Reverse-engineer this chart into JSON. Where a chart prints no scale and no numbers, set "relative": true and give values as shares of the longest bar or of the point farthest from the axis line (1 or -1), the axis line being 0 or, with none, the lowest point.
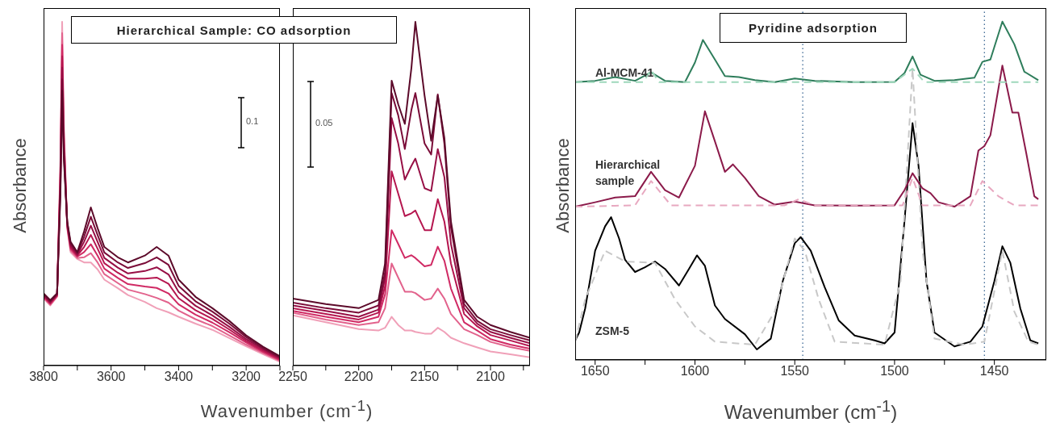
{
  "chart_data": [
    {
      "type": "line",
      "title": "Hierarchical Sample: CO adsorption",
      "xlabel": "Wavenumber (cm$^{-1}$)",
      "ylabel": "Absorbance",
      "relative": true,
      "annotations": [
        "0.1"
      ],
      "xlim": [
        3800,
        3100
      ],
      "xticks": [
        3800,
        {
          "value": 3700,
          "label": null
        },
        3600,
        {
          "value": 3500,
          "label": null
        },
        3400,
        {
          "value": 3300,
          "label": null
        },
        3200,
        {
          "value": 3100,
          "label": null
        }
      ],
      "x": [
        3800,
        3780,
        3760,
        3750,
        3745,
        3740,
        3730,
        3720,
        3700,
        3680,
        3660,
        3640,
        3620,
        3580,
        3550,
        3500,
        3465,
        3430,
        3400,
        3350,
        3300,
        3250,
        3200,
        3150,
        3100
      ],
      "series": [
        {
          "color": "#5c0a2a",
          "values": [
            0.21,
            0.19,
            0.21,
            0.5,
            0.8,
            0.6,
            0.42,
            0.36,
            0.33,
            0.39,
            0.46,
            0.4,
            0.345,
            0.315,
            0.3,
            0.32,
            0.345,
            0.32,
            0.25,
            0.2,
            0.167,
            0.13,
            0.088,
            0.055,
            0.027
          ]
        },
        {
          "color": "#7a0c38",
          "values": [
            0.207,
            0.187,
            0.208,
            0.517,
            0.833,
            0.617,
            0.417,
            0.355,
            0.327,
            0.375,
            0.433,
            0.38,
            0.329,
            0.3,
            0.284,
            0.298,
            0.315,
            0.293,
            0.232,
            0.187,
            0.157,
            0.122,
            0.083,
            0.051,
            0.024
          ]
        },
        {
          "color": "#970f45",
          "values": [
            0.205,
            0.185,
            0.207,
            0.533,
            0.867,
            0.633,
            0.413,
            0.35,
            0.323,
            0.36,
            0.407,
            0.36,
            0.313,
            0.285,
            0.268,
            0.275,
            0.286,
            0.265,
            0.214,
            0.174,
            0.146,
            0.113,
            0.077,
            0.048,
            0.022
          ]
        },
        {
          "color": "#b5164f",
          "values": [
            0.202,
            0.182,
            0.205,
            0.55,
            0.9,
            0.65,
            0.41,
            0.345,
            0.32,
            0.345,
            0.38,
            0.34,
            0.298,
            0.27,
            0.253,
            0.253,
            0.256,
            0.238,
            0.196,
            0.161,
            0.136,
            0.105,
            0.072,
            0.044,
            0.019
          ]
        },
        {
          "color": "#d02a64",
          "values": [
            0.2,
            0.18,
            0.203,
            0.567,
            0.933,
            0.667,
            0.407,
            0.34,
            0.317,
            0.33,
            0.353,
            0.32,
            0.282,
            0.255,
            0.237,
            0.23,
            0.226,
            0.21,
            0.178,
            0.148,
            0.125,
            0.097,
            0.067,
            0.04,
            0.016
          ]
        },
        {
          "color": "#e2628c",
          "values": [
            0.197,
            0.177,
            0.202,
            0.583,
            0.967,
            0.683,
            0.403,
            0.335,
            0.313,
            0.315,
            0.327,
            0.3,
            0.266,
            0.24,
            0.221,
            0.208,
            0.197,
            0.183,
            0.16,
            0.135,
            0.115,
            0.088,
            0.061,
            0.037,
            0.014
          ]
        },
        {
          "color": "#f0a0b8",
          "values": [
            0.195,
            0.175,
            0.2,
            0.6,
            1,
            0.7,
            0.4,
            0.33,
            0.31,
            0.3,
            0.3,
            0.28,
            0.25,
            0.225,
            0.205,
            0.185,
            0.167,
            0.155,
            0.142,
            0.122,
            0.104,
            0.08,
            0.056,
            0.033,
            0.011
          ]
        }
      ]
    },
    {
      "type": "line",
      "relative": true,
      "annotations": [
        "0.05"
      ],
      "xlim": [
        2250,
        2070
      ],
      "xticks": [
        2250,
        {
          "value": 2225,
          "label": null
        },
        2200,
        {
          "value": 2175,
          "label": null
        },
        2150,
        {
          "value": 2125,
          "label": null
        },
        2100,
        {
          "value": 2075,
          "label": null
        }
      ],
      "x": [
        2250,
        2225,
        2200,
        2185,
        2180,
        2175,
        2170,
        2165,
        2160,
        2157,
        2150,
        2145,
        2140,
        2135,
        2130,
        2120,
        2110,
        2100,
        2085,
        2070
      ],
      "series": [
        {
          "color": "#5c0a2a",
          "values": [
            0.195,
            0.179,
            0.167,
            0.191,
            0.297,
            0.829,
            0.76,
            0.703,
            0.866,
            1,
            0.785,
            0.654,
            0.785,
            0.663,
            0.419,
            0.191,
            0.142,
            0.118,
            0.098,
            0.081
          ]
        },
        {
          "color": "#7a0c38",
          "values": [
            0.183,
            0.167,
            0.154,
            0.175,
            0.272,
            0.793,
            0.728,
            0.63,
            0.744,
            0.793,
            0.646,
            0.614,
            0.789,
            0.646,
            0.402,
            0.179,
            0.13,
            0.106,
            0.089,
            0.073
          ]
        },
        {
          "color": "#970f45",
          "values": [
            0.175,
            0.159,
            0.142,
            0.163,
            0.256,
            0.72,
            0.646,
            0.541,
            0.581,
            0.602,
            0.516,
            0.508,
            0.63,
            0.549,
            0.354,
            0.167,
            0.122,
            0.098,
            0.081,
            0.065
          ]
        },
        {
          "color": "#b5164f",
          "values": [
            0.167,
            0.15,
            0.134,
            0.154,
            0.232,
            0.565,
            0.5,
            0.435,
            0.443,
            0.451,
            0.394,
            0.394,
            0.484,
            0.419,
            0.297,
            0.15,
            0.114,
            0.089,
            0.073,
            0.057
          ]
        },
        {
          "color": "#d02a64",
          "values": [
            0.159,
            0.142,
            0.126,
            0.142,
            0.207,
            0.394,
            0.354,
            0.313,
            0.321,
            0.313,
            0.289,
            0.293,
            0.346,
            0.305,
            0.224,
            0.126,
            0.102,
            0.077,
            0.061,
            0.049
          ]
        },
        {
          "color": "#e2628c",
          "values": [
            0.154,
            0.134,
            0.118,
            0.126,
            0.167,
            0.297,
            0.256,
            0.215,
            0.215,
            0.211,
            0.191,
            0.195,
            0.224,
            0.195,
            0.15,
            0.106,
            0.089,
            0.069,
            0.054,
            0.043
          ]
        },
        {
          "color": "#f0a0b8",
          "values": [
            0.146,
            0.126,
            0.106,
            0.102,
            0.11,
            0.142,
            0.118,
            0.102,
            0.102,
            0.098,
            0.093,
            0.093,
            0.11,
            0.098,
            0.081,
            0.065,
            0.053,
            0.041,
            0.033,
            0.024
          ]
        }
      ]
    },
    {
      "type": "line",
      "title": "Pyridine adsorption",
      "xlabel": "Wavenumber (cm$^{-1}$)",
      "ylabel": "Absorbance",
      "relative": true,
      "xlim": [
        1660,
        1424
      ],
      "xticks": [
        1650,
        {
          "value": 1625,
          "label": null
        },
        1600,
        {
          "value": 1575,
          "label": null
        },
        1550,
        {
          "value": 1525,
          "label": null
        },
        1500,
        {
          "value": 1475,
          "label": null
        },
        1450
      ],
      "ref_lines": [
        {
          "axis": "x",
          "value": 1546,
          "color": "#2a5a8a",
          "line_style": "dotted"
        },
        {
          "axis": "x",
          "value": 1455,
          "color": "#2a5a8a",
          "line_style": "dotted"
        }
      ],
      "series": [
        {
          "color": "#9fd8bc",
          "line_style": "dashed",
          "x": [
            1660,
            1626,
            1622,
            1618,
            1500,
            1491,
            1485,
            1428
          ],
          "values": [
            0.821,
            0.821,
            0.857,
            0.821,
            0.821,
            0.861,
            0.821,
            0.821
          ]
        },
        {
          "name": "Al-MCM-41",
          "color": "#2e7d5b",
          "x": [
            1660,
            1650,
            1640,
            1630,
            1622,
            1615,
            1605,
            1600,
            1596,
            1590,
            1585,
            1578,
            1570,
            1560,
            1550,
            1540,
            1520,
            1500,
            1495,
            1491,
            1487,
            1480,
            1470,
            1460,
            1456,
            1452,
            1446,
            1440,
            1435,
            1428
          ],
          "values": [
            0.821,
            0.825,
            0.836,
            0.825,
            0.85,
            0.825,
            0.821,
            0.879,
            0.946,
            0.888,
            0.839,
            0.836,
            0.827,
            0.821,
            0.832,
            0.825,
            0.821,
            0.822,
            0.848,
            0.897,
            0.843,
            0.825,
            0.827,
            0.834,
            0.881,
            0.888,
            1,
            0.933,
            0.852,
            0.827
          ]
        },
        {
          "color": "#e8a8c0",
          "line_style": "dashed",
          "x": [
            1660,
            1630,
            1622,
            1612,
            1555,
            1548,
            1540,
            1496,
            1491,
            1486,
            1462,
            1456,
            1448,
            1440,
            1428
          ],
          "values": [
            0.453,
            0.457,
            0.529,
            0.457,
            0.457,
            0.475,
            0.457,
            0.457,
            0.538,
            0.457,
            0.457,
            0.529,
            0.484,
            0.457,
            0.457
          ]
        },
        {
          "name": "Hierarchical sample",
          "color": "#8b1a4a",
          "x": [
            1660,
            1650,
            1640,
            1630,
            1622,
            1615,
            1608,
            1600,
            1595,
            1590,
            1585,
            1581,
            1575,
            1568,
            1560,
            1550,
            1540,
            1520,
            1500,
            1495,
            1491,
            1486,
            1482,
            1478,
            1470,
            1462,
            1458,
            1455,
            1452,
            1446,
            1441,
            1438,
            1434,
            1430,
            1428
          ],
          "values": [
            0.453,
            0.466,
            0.48,
            0.484,
            0.556,
            0.502,
            0.48,
            0.574,
            0.735,
            0.646,
            0.556,
            0.578,
            0.538,
            0.484,
            0.459,
            0.468,
            0.457,
            0.456,
            0.457,
            0.502,
            0.552,
            0.507,
            0.493,
            0.466,
            0.453,
            0.484,
            0.619,
            0.632,
            0.664,
            0.87,
            0.731,
            0.731,
            0.61,
            0.484,
            0.475
          ]
        },
        {
          "color": "#c8c8c8",
          "line_style": "dashed",
          "x": [
            1660,
            1655,
            1645,
            1635,
            1620,
            1610,
            1600,
            1590,
            1570,
            1560,
            1550,
            1545,
            1538,
            1530,
            1505,
            1497,
            1491,
            1486,
            1480,
            1465,
            1455,
            1446,
            1440,
            1433,
            1428
          ],
          "values": [
            0.054,
            0.179,
            0.323,
            0.291,
            0.287,
            0.179,
            0.099,
            0.054,
            0.045,
            0.143,
            0.359,
            0.323,
            0.179,
            0.054,
            0.045,
            0.233,
            0.861,
            0.323,
            0.063,
            0.045,
            0.054,
            0.323,
            0.143,
            0.054,
            0.045
          ]
        },
        {
          "name": "ZSM-5",
          "color": "#000000",
          "x": [
            1660,
            1658,
            1655,
            1650,
            1645,
            1642,
            1638,
            1635,
            1630,
            1625,
            1620,
            1615,
            1608,
            1603,
            1599,
            1595,
            1590,
            1585,
            1575,
            1569,
            1562,
            1556,
            1550,
            1547,
            1542,
            1535,
            1528,
            1520,
            1510,
            1505,
            1500,
            1495,
            1491,
            1488,
            1484,
            1480,
            1470,
            1462,
            1456,
            1450,
            1446,
            1442,
            1437,
            1432,
            1428
          ],
          "values": [
            0.058,
            0.081,
            0.152,
            0.323,
            0.395,
            0.422,
            0.359,
            0.296,
            0.26,
            0.274,
            0.291,
            0.269,
            0.22,
            0.269,
            0.309,
            0.278,
            0.161,
            0.121,
            0.076,
            0.031,
            0.063,
            0.233,
            0.345,
            0.363,
            0.323,
            0.215,
            0.117,
            0.072,
            0.058,
            0.049,
            0.081,
            0.413,
            0.7,
            0.574,
            0.233,
            0.081,
            0.04,
            0.054,
            0.099,
            0.233,
            0.336,
            0.287,
            0.152,
            0.058,
            0.049
          ]
        }
      ]
    }
  ]
}
